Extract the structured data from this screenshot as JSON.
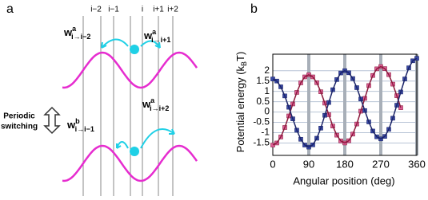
{
  "panel_a": {
    "label": "a",
    "lanes": [
      "i−2",
      "i−1",
      "i",
      "i+1",
      "i+2"
    ],
    "rates": [
      {
        "symbol": "w",
        "superscript": "a",
        "subscript": "i→i−2"
      },
      {
        "symbol": "w",
        "superscript": "a",
        "subscript": "i→i+1"
      },
      {
        "symbol": "w",
        "superscript": "b",
        "subscript": "i→i−1"
      },
      {
        "symbol": "w",
        "superscript": "a",
        "subscript": "i→i+2"
      }
    ],
    "switch_label": [
      "Periodic",
      "switching"
    ]
  },
  "chart_data": {
    "type": "line",
    "panel_label": "b",
    "xlabel": "Angular position (deg)",
    "ylabel": [
      "Potential energy (k",
      "B",
      "T)"
    ],
    "x": [
      0,
      10,
      20,
      30,
      40,
      50,
      60,
      70,
      80,
      90,
      100,
      110,
      120,
      130,
      140,
      150,
      160,
      170,
      180,
      190,
      200,
      210,
      220,
      230,
      240,
      250,
      260,
      270,
      280,
      290,
      300,
      310,
      320,
      330,
      340,
      350,
      360
    ],
    "series": [
      {
        "color": "#e0609a",
        "line_color": "#8a1b3c",
        "values": [
          -1.6,
          -1.5,
          -1.21,
          -0.75,
          -0.19,
          0.39,
          0.95,
          1.41,
          1.7,
          1.8,
          1.7,
          1.42,
          0.98,
          0.43,
          -0.13,
          -0.68,
          -1.12,
          -1.4,
          -1.5,
          -1.39,
          -1.07,
          -0.58,
          0.04,
          0.66,
          1.28,
          1.77,
          2.09,
          2.2,
          2.1,
          1.81,
          1.35,
          0.79,
          0.21,
          null,
          null,
          null,
          null
        ]
      },
      {
        "color": "#3a4aa8",
        "line_color": "#1b2468",
        "values": [
          1.6,
          1.5,
          1.22,
          0.78,
          0.23,
          -0.33,
          -0.88,
          -1.32,
          -1.6,
          -1.7,
          -1.59,
          -1.27,
          -0.78,
          -0.16,
          0.46,
          1.08,
          1.57,
          1.89,
          2.0,
          1.9,
          1.62,
          1.18,
          0.63,
          0.07,
          -0.48,
          -0.92,
          -1.2,
          -1.3,
          -1.18,
          -0.84,
          -0.3,
          0.33,
          0.97,
          1.6,
          2.14,
          2.48,
          2.6
        ]
      }
    ],
    "xlim": [
      0,
      360
    ],
    "xticks": [
      0,
      90,
      180,
      270,
      360
    ],
    "ylim": [
      -2.1,
      2.8
    ],
    "yticks": [
      -1.5,
      -1,
      -0.5,
      0,
      0.5,
      1,
      1.5,
      2
    ],
    "grid": true
  }
}
